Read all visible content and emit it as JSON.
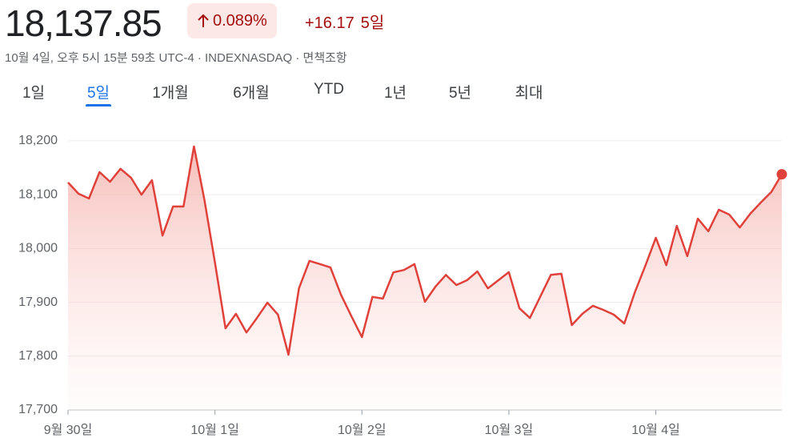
{
  "header": {
    "price": "18,137.85",
    "change_percent": "0.089%",
    "change": "+16.17",
    "period": "5일",
    "subtitle": "10월 4일, 오후 5시 15분 59초 UTC-4 · INDEXNASDAQ · 면책조항"
  },
  "tabs": {
    "items": [
      "1일",
      "5일",
      "1개월",
      "6개월",
      "YTD",
      "1년",
      "5년",
      "최대"
    ],
    "selected": 1
  },
  "chart_data": {
    "type": "line",
    "x": [
      0,
      1,
      2,
      3,
      4,
      5,
      6,
      7,
      8,
      9,
      10,
      11,
      12,
      13,
      14,
      15,
      16,
      17,
      18,
      19,
      20,
      21,
      22,
      23,
      24,
      25,
      26,
      27,
      28,
      29,
      30,
      31,
      32,
      33,
      34,
      35,
      36,
      37,
      38,
      39,
      40,
      41,
      42,
      43,
      44,
      45,
      46,
      47,
      48,
      49,
      50,
      51,
      52,
      53,
      54,
      55,
      56,
      57,
      58,
      59,
      60,
      61,
      62,
      63,
      64,
      65,
      66,
      67,
      68
    ],
    "series": [
      {
        "color": "#e0413a",
        "values": [
          18122.6,
          18101.8,
          18092.9,
          18142,
          18124,
          18148,
          18131.5,
          18100,
          18127,
          18024,
          18078,
          18078,
          18189.6,
          18090,
          17974,
          17851.8,
          17878.6,
          17844,
          17871,
          17899.4,
          17877,
          17802.7,
          17926,
          17977,
          17971,
          17965,
          17914,
          17874,
          17835.4,
          17910,
          17907,
          17955.5,
          17960,
          17971,
          17901,
          17929,
          17951,
          17932,
          17941,
          17957.4,
          17926,
          17941,
          17956,
          17889,
          17871,
          17911,
          17951,
          17953,
          17857.7,
          17878.6,
          17893.5,
          17886,
          17877,
          17860.7,
          17918.8,
          17968,
          18020,
          17969,
          18042,
          17985.7,
          18055.6,
          18032,
          18072,
          18063,
          18039,
          18064.6,
          18085.4,
          18105,
          18137.85
        ]
      }
    ],
    "xlim": [
      0,
      68
    ],
    "xticks": [
      {
        "value": 0,
        "label": "9월 30일"
      },
      {
        "value": 14,
        "label": "10월 1일"
      },
      {
        "value": 28,
        "label": "10월 2일"
      },
      {
        "value": 42,
        "label": "10월 3일"
      },
      {
        "value": 56,
        "label": "10월 4일"
      }
    ],
    "ylim": [
      17700,
      18240
    ],
    "yticks": [
      {
        "value": 17700,
        "label": "17,700"
      },
      {
        "value": 17800,
        "label": "17,800"
      },
      {
        "value": 17900,
        "label": "17,900"
      },
      {
        "value": 18000,
        "label": "18,000"
      },
      {
        "value": 18100,
        "label": "18,100"
      },
      {
        "value": 18200,
        "label": "18,200"
      }
    ],
    "grid": true
  }
}
